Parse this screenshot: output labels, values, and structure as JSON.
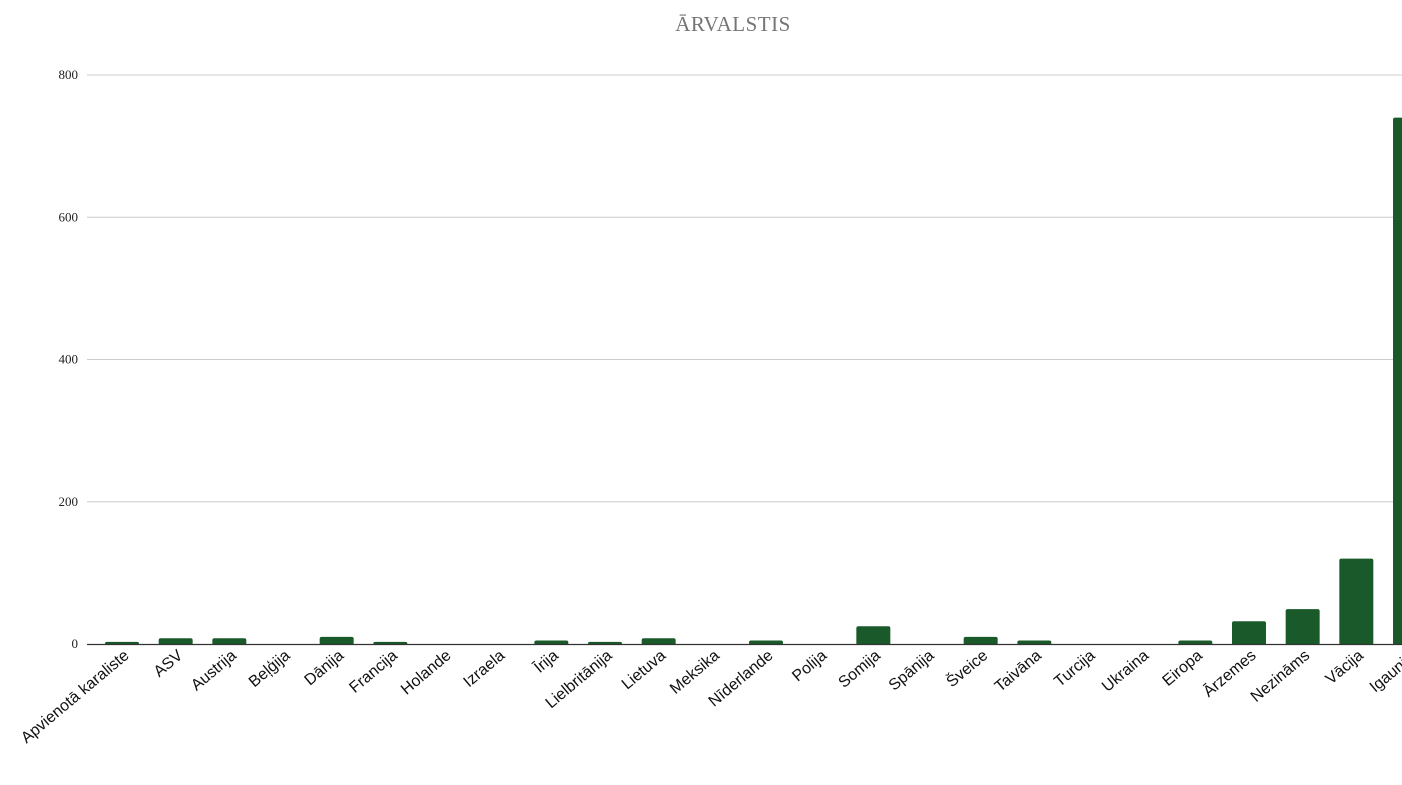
{
  "chart_data": {
    "type": "bar",
    "title": "ĀRVALSTIS",
    "xlabel": "",
    "ylabel": "",
    "ylim": [
      0,
      800
    ],
    "yticks": [
      0,
      200,
      400,
      600,
      800
    ],
    "grid": true,
    "legend": "none",
    "bar_color": "#1a5a2a",
    "grid_color": "#cccccc",
    "categories": [
      "Apvienotā karaliste",
      "ASV",
      "Austrija",
      "Beļģija",
      "Dānija",
      "Francija",
      "Holande",
      "Izraela",
      "Īrija",
      "Lielbritānija",
      "Lietuva",
      "Meksika",
      "Nīderlande",
      "Polija",
      "Somija",
      "Spānija",
      "Šveice",
      "Taivāna",
      "Turcija",
      "Ukraina",
      "Eiropa",
      "Ārzemes",
      "Nezināms",
      "Vācija",
      "Igaunija"
    ],
    "values": [
      3,
      8,
      8,
      0,
      10,
      3,
      0,
      0,
      5,
      3,
      8,
      0,
      5,
      0,
      25,
      0,
      10,
      5,
      0,
      0,
      5,
      32,
      49,
      120,
      740
    ]
  }
}
